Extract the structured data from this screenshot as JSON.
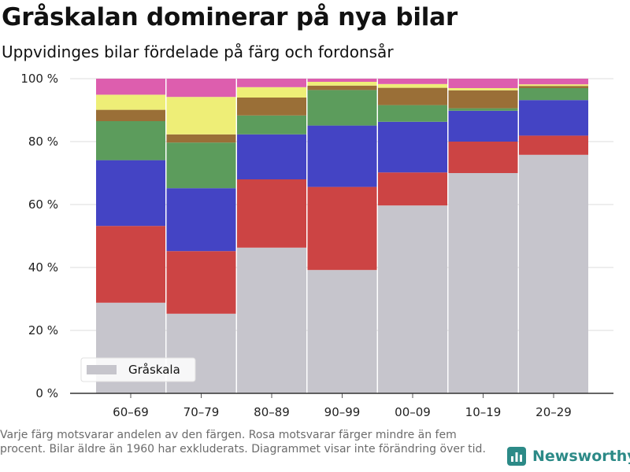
{
  "header": {
    "title": "Gråskalan dominerar på nya bilar",
    "subtitle": "Uppvidinges bilar fördelade på färg och fordonsår"
  },
  "footer": {
    "note": "Varje färg motsvarar andelen av den färgen. Rosa motsvarar färger mindre än fem procent. Bilar äldre än 1960 har exkluderats. Diagrammet visar inte förändring över tid.",
    "brand": "Newsworthy",
    "brand_color": "#2c8a87"
  },
  "chart_data": {
    "type": "bar",
    "stacked": true,
    "categories": [
      "60–69",
      "70–79",
      "80–89",
      "90–99",
      "00–09",
      "10–19",
      "20–29"
    ],
    "ylim": [
      0,
      100
    ],
    "yticks": [
      0,
      20,
      40,
      60,
      80,
      100
    ],
    "ytick_labels": [
      "0 %",
      "20 %",
      "40 %",
      "60 %",
      "80 %",
      "100 %"
    ],
    "grid": true,
    "legend_position": "bottom-left",
    "series": [
      {
        "name": "Gråskala",
        "color": "#c6c5cc",
        "values": [
          28.8,
          25.3,
          46.3,
          39.2,
          59.7,
          70.0,
          75.8
        ]
      },
      {
        "color": "#cc4444",
        "values": [
          24.4,
          19.9,
          21.7,
          26.4,
          10.5,
          10.0,
          6.1
        ]
      },
      {
        "color": "#4444c4",
        "values": [
          20.9,
          20.0,
          14.3,
          19.5,
          16.1,
          9.8,
          11.3
        ]
      },
      {
        "color": "#5c9c5c",
        "values": [
          12.4,
          14.5,
          6.0,
          11.3,
          5.3,
          0.8,
          3.8
        ]
      },
      {
        "color": "#9a6f37",
        "values": [
          3.6,
          2.6,
          5.7,
          1.4,
          5.5,
          5.7,
          0.7
        ]
      },
      {
        "color": "#eeee77",
        "values": [
          4.8,
          11.9,
          3.3,
          1.2,
          1.2,
          0.7,
          0.5
        ]
      },
      {
        "color": "#dd5eae",
        "values": [
          5.1,
          5.8,
          2.7,
          1.0,
          1.7,
          3.0,
          1.8
        ]
      }
    ]
  }
}
